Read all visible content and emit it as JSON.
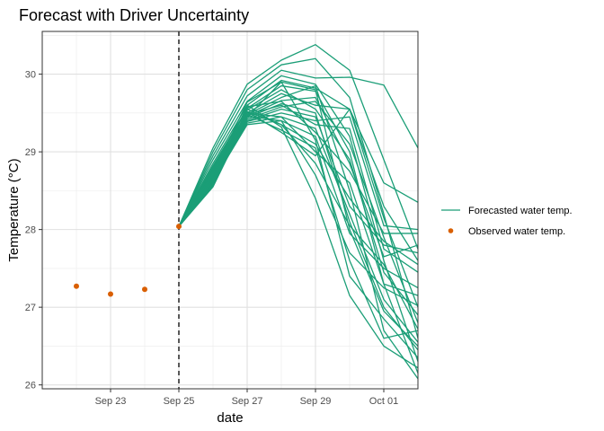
{
  "chart_data": {
    "type": "line",
    "title": "Forecast with Driver Uncertainty",
    "xlabel": "date",
    "ylabel": "Temperature (°C)",
    "xlim": [
      "2020-09-21",
      "2020-10-02"
    ],
    "ylim": [
      25.95,
      30.55
    ],
    "x_ticks": [
      {
        "date": "2020-09-23",
        "label": "Sep 23"
      },
      {
        "date": "2020-09-25",
        "label": "Sep 25"
      },
      {
        "date": "2020-09-27",
        "label": "Sep 27"
      },
      {
        "date": "2020-09-29",
        "label": "Sep 29"
      },
      {
        "date": "2020-10-01",
        "label": "Oct 01"
      }
    ],
    "y_ticks": [
      {
        "value": 26,
        "label": "26"
      },
      {
        "value": 27,
        "label": "27"
      },
      {
        "value": 28,
        "label": "28"
      },
      {
        "value": 29,
        "label": "29"
      },
      {
        "value": 30,
        "label": "30"
      }
    ],
    "grid": true,
    "forecast_start_line": "2020-09-25",
    "legend_position": "right",
    "observed": {
      "name": "Observed water temp.",
      "color": "#D95F02",
      "dates": [
        "2020-09-22",
        "2020-09-23",
        "2020-09-24",
        "2020-09-25"
      ],
      "values": [
        27.27,
        27.17,
        27.23,
        28.04
      ]
    },
    "forecast": {
      "name": "Forecasted water temp.",
      "color": "#1B9E77",
      "dates": [
        "2020-09-25",
        "2020-09-26",
        "2020-09-27",
        "2020-09-28",
        "2020-09-29",
        "2020-09-30",
        "2020-10-01",
        "2020-10-02"
      ],
      "ensemble": [
        [
          28.04,
          29.05,
          29.87,
          30.18,
          30.38,
          30.05,
          28.9,
          27.75
        ],
        [
          28.04,
          29.0,
          29.8,
          30.12,
          30.2,
          29.7,
          28.2,
          26.6
        ],
        [
          28.04,
          28.95,
          29.72,
          30.05,
          29.95,
          29.96,
          29.86,
          29.05
        ],
        [
          28.04,
          28.9,
          29.65,
          29.98,
          29.87,
          29.2,
          27.6,
          26.3
        ],
        [
          28.04,
          28.85,
          29.6,
          29.92,
          29.82,
          29.55,
          28.6,
          28.35
        ],
        [
          28.04,
          28.82,
          29.56,
          29.85,
          29.78,
          29.0,
          27.3,
          26.15
        ],
        [
          28.04,
          28.8,
          29.54,
          29.8,
          29.55,
          28.9,
          27.45,
          26.9
        ],
        [
          28.04,
          28.78,
          29.5,
          29.75,
          29.6,
          29.55,
          28.3,
          27.6
        ],
        [
          28.04,
          28.76,
          29.48,
          29.7,
          29.85,
          28.5,
          26.7,
          26.08
        ],
        [
          28.04,
          28.74,
          29.46,
          29.66,
          29.7,
          28.85,
          27.65,
          27.8
        ],
        [
          28.04,
          28.72,
          29.44,
          29.62,
          29.5,
          28.1,
          27.0,
          26.45
        ],
        [
          28.04,
          28.7,
          29.42,
          29.58,
          29.65,
          29.1,
          27.9,
          26.8
        ],
        [
          28.04,
          28.68,
          29.4,
          29.55,
          29.45,
          28.3,
          27.8,
          27.7
        ],
        [
          28.04,
          28.66,
          29.39,
          29.5,
          29.4,
          29.45,
          28.05,
          28.0
        ],
        [
          28.04,
          28.64,
          29.37,
          29.45,
          29.3,
          28.2,
          27.1,
          26.55
        ],
        [
          28.04,
          28.62,
          29.35,
          29.4,
          29.2,
          27.95,
          27.5,
          27.25
        ],
        [
          28.04,
          28.6,
          29.55,
          29.35,
          29.1,
          28.4,
          27.85,
          27.55
        ],
        [
          28.04,
          28.6,
          29.6,
          29.32,
          28.4,
          27.15,
          26.5,
          26.22
        ],
        [
          28.04,
          28.58,
          29.48,
          29.28,
          29.05,
          27.6,
          26.6,
          26.7
        ],
        [
          28.04,
          28.56,
          29.52,
          29.25,
          28.95,
          29.55,
          28.15,
          27.0
        ],
        [
          28.04,
          28.55,
          29.45,
          29.9,
          29.15,
          27.4,
          26.85,
          26.35
        ],
        [
          28.04,
          28.58,
          29.5,
          29.45,
          29.0,
          28.6,
          27.3,
          27.15
        ],
        [
          28.04,
          28.7,
          29.58,
          29.65,
          29.25,
          28.75,
          27.95,
          27.95
        ],
        [
          28.04,
          28.66,
          29.52,
          29.35,
          28.85,
          28.05,
          27.55,
          26.72
        ],
        [
          28.04,
          28.72,
          29.64,
          29.9,
          29.8,
          28.0,
          26.95,
          26.5
        ],
        [
          28.04,
          28.62,
          29.46,
          29.4,
          28.7,
          27.7,
          27.25,
          27.02
        ],
        [
          28.04,
          28.64,
          29.48,
          29.6,
          29.35,
          29.3,
          27.75,
          27.45
        ]
      ]
    }
  }
}
